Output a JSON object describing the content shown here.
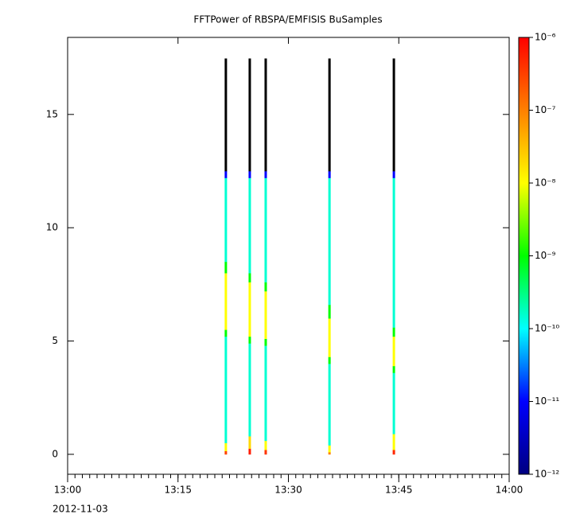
{
  "chart_data": {
    "type": "spectrogram",
    "title": "FFTPower of RBSPA/EMFISIS  BuSamples",
    "xlim": [
      "13:00",
      "14:00"
    ],
    "xticks": [
      "13:00",
      "13:15",
      "13:30",
      "13:45",
      "14:00"
    ],
    "x_date_label": "2012-11-03",
    "ylim": [
      -0.88,
      18.4
    ],
    "yticks": [
      0,
      5,
      10,
      15
    ],
    "zlim": [
      1e-12,
      1e-06
    ],
    "zlog": true,
    "zticks": [
      {
        "value": 1e-12,
        "label": "10⁻¹²"
      },
      {
        "value": 1e-11,
        "label": "10⁻¹¹"
      },
      {
        "value": 1e-10,
        "label": "10⁻¹⁰"
      },
      {
        "value": 1e-09,
        "label": "10⁻⁹"
      },
      {
        "value": 1e-08,
        "label": "10⁻⁸"
      },
      {
        "value": 1e-07,
        "label": "10⁻⁷"
      },
      {
        "value": 1e-06,
        "label": "10⁻⁶"
      }
    ],
    "colormap": [
      "#000080",
      "#0000ff",
      "#00ffff",
      "#00ff00",
      "#ffff00",
      "#ff8000",
      "#ff0000"
    ],
    "under_color": "#000000",
    "strips": [
      {
        "time": "13:21:30",
        "edges": [
          0,
          0.15,
          0.5,
          5.2,
          5.5,
          8.0,
          8.5,
          12.2,
          12.5,
          17.47
        ],
        "power": [
          3e-07,
          1e-08,
          1.5e-10,
          1e-09,
          1e-08,
          1e-09,
          1.5e-10,
          1e-11,
          1e-13
        ]
      },
      {
        "time": "13:24:45",
        "edges": [
          0,
          0.25,
          0.8,
          4.9,
          5.2,
          7.6,
          8.0,
          12.2,
          12.5,
          17.47
        ],
        "power": [
          6e-07,
          2e-08,
          1.5e-10,
          1e-09,
          1e-08,
          1e-09,
          1.5e-10,
          1e-11,
          1e-13
        ]
      },
      {
        "time": "13:26:55",
        "edges": [
          0,
          0.2,
          0.6,
          4.8,
          5.1,
          7.2,
          7.6,
          12.2,
          12.5,
          17.47
        ],
        "power": [
          4e-07,
          1e-08,
          1.5e-10,
          1e-09,
          1e-08,
          1e-09,
          1.5e-10,
          1e-11,
          1e-13
        ]
      },
      {
        "time": "13:35:35",
        "edges": [
          0,
          0.1,
          0.4,
          4.0,
          4.3,
          6.0,
          6.6,
          12.2,
          12.5,
          17.47
        ],
        "power": [
          1e-07,
          1e-08,
          1.5e-10,
          1e-09,
          1e-08,
          1e-09,
          1.5e-10,
          1e-11,
          1e-13
        ]
      },
      {
        "time": "13:44:20",
        "edges": [
          0,
          0.2,
          0.9,
          3.6,
          3.9,
          5.2,
          5.6,
          12.2,
          12.5,
          17.47
        ],
        "power": [
          5e-07,
          1e-08,
          1.5e-10,
          1e-09,
          1e-08,
          1e-09,
          1.5e-10,
          1e-11,
          1e-13
        ]
      }
    ]
  }
}
